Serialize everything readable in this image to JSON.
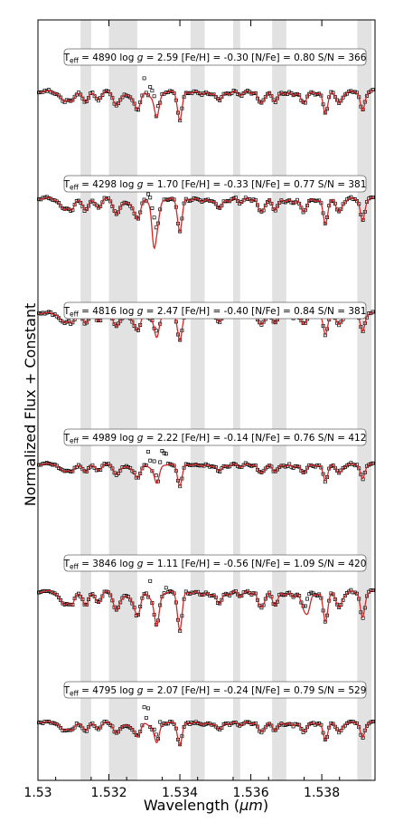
{
  "chart_data": {
    "type": "line",
    "xlabel_main": "Wavelength (",
    "xlabel_unit": "μm",
    "xlabel_close": ")",
    "ylabel": "Normalized Flux + Constant",
    "xlim": [
      1.53,
      1.5395
    ],
    "xticks": [
      {
        "value": 1.53,
        "label": "1.53"
      },
      {
        "value": 1.532,
        "label": "1.532"
      },
      {
        "value": 1.534,
        "label": "1.534"
      },
      {
        "value": 1.536,
        "label": "1.536"
      },
      {
        "value": 1.538,
        "label": "1.538"
      }
    ],
    "shaded_bands": [
      [
        1.5312,
        1.5315
      ],
      [
        1.532,
        1.5328
      ],
      [
        1.5343,
        1.5347
      ],
      [
        1.5355,
        1.5357
      ],
      [
        1.5366,
        1.537
      ],
      [
        1.539,
        1.5394
      ]
    ],
    "colors": {
      "model": "#d62728",
      "observed": "#000000",
      "band": "#e2e2e2"
    },
    "series": [
      {
        "name": "model fit",
        "style": "line"
      },
      {
        "name": "observed spectrum",
        "style": "open-square markers"
      }
    ],
    "panels": [
      {
        "teff": "4890",
        "logg": "2.59",
        "feh": "-0.30",
        "nfe": "0.80",
        "sn": "366",
        "label": "T_eff = 4890 log g = 2.59 [Fe/H] = -0.30 [N/Fe] = 0.80 S/N = 366"
      },
      {
        "teff": "4298",
        "logg": "1.70",
        "feh": "-0.33",
        "nfe": "0.77",
        "sn": "381",
        "label": "T_eff = 4298 log g = 1.70 [Fe/H] = -0.33 [N/Fe] = 0.77 S/N = 381"
      },
      {
        "teff": "4816",
        "logg": "2.47",
        "feh": "-0.40",
        "nfe": "0.84",
        "sn": "381",
        "label": "T_eff = 4816 log g = 2.47 [Fe/H] = -0.40 [N/Fe] = 0.84 S/N = 381"
      },
      {
        "teff": "4989",
        "logg": "2.22",
        "feh": "-0.14",
        "nfe": "0.76",
        "sn": "412",
        "label": "T_eff = 4989 log g = 2.22 [Fe/H] = -0.14 [N/Fe] = 0.76 S/N = 412"
      },
      {
        "teff": "3846",
        "logg": "1.11",
        "feh": "-0.56",
        "nfe": "1.09",
        "sn": "420",
        "label": "T_eff = 3846 log g = 1.11 [Fe/H] = -0.56 [N/Fe] = 1.09 S/N = 420"
      },
      {
        "teff": "4795",
        "logg": "2.07",
        "feh": "-0.24",
        "nfe": "0.79",
        "sn": "529",
        "label": "T_eff = 4795 log g = 2.07 [Fe/H] = -0.24 [N/Fe] = 0.79 S/N = 529"
      }
    ]
  }
}
